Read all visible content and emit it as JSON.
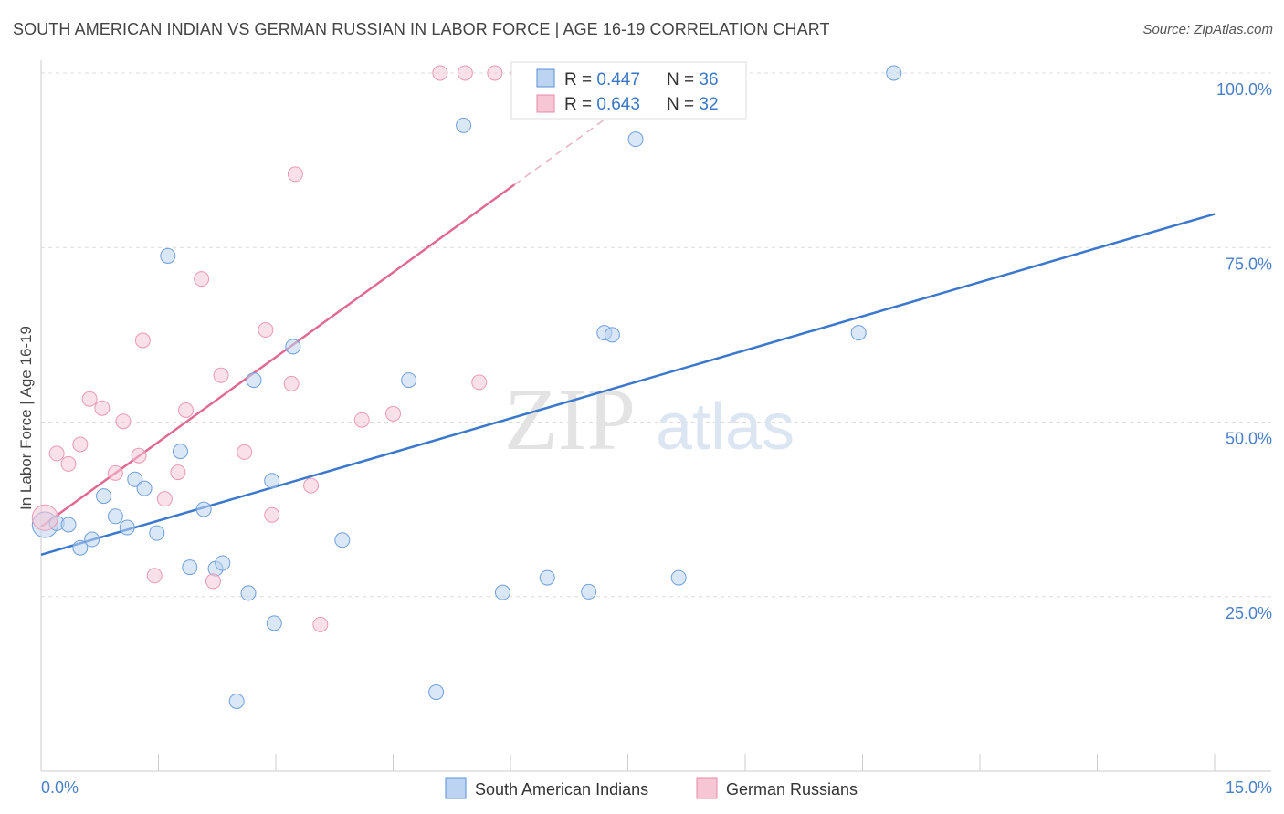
{
  "header": {
    "title": "SOUTH AMERICAN INDIAN VS GERMAN RUSSIAN IN LABOR FORCE | AGE 16-19 CORRELATION CHART",
    "source": "Source: ZipAtlas.com"
  },
  "watermark": {
    "zip": "ZIP",
    "atlas": "atlas"
  },
  "chart_data": {
    "type": "scatter",
    "title": "SOUTH AMERICAN INDIAN VS GERMAN RUSSIAN IN LABOR FORCE | AGE 16-19 CORRELATION CHART",
    "ylabel": "In Labor Force | Age 16-19",
    "xlabel": "",
    "xlim": [
      0,
      15
    ],
    "ylim": [
      0,
      102
    ],
    "x_tick_labels": [
      "0.0%",
      "15.0%"
    ],
    "y_ticks": [
      25,
      50,
      75,
      100
    ],
    "y_tick_labels": [
      "25.0%",
      "50.0%",
      "75.0%",
      "100.0%"
    ],
    "grid": true,
    "legend_position": "top-center",
    "colors": {
      "south_american_indians": "#3b78cc",
      "german_russians": "#e06a91",
      "blue_fill": "#bcd4f1",
      "pink_fill": "#f6c6d5"
    },
    "legend": [
      {
        "r_label": "R = ",
        "r_value": "0.447",
        "n_label": "N = ",
        "n_value": "36"
      },
      {
        "r_label": "R = ",
        "r_value": "0.643",
        "n_label": "N = ",
        "n_value": "32"
      }
    ],
    "series": [
      {
        "name": "South American Indians",
        "color": "#3b78cc",
        "points": [
          [
            0.05,
            35.3
          ],
          [
            0.2,
            35.5
          ],
          [
            0.35,
            35.3
          ],
          [
            0.5,
            32.0
          ],
          [
            0.65,
            33.2
          ],
          [
            0.8,
            39.4
          ],
          [
            0.95,
            36.5
          ],
          [
            1.1,
            34.9
          ],
          [
            1.2,
            41.8
          ],
          [
            1.32,
            40.5
          ],
          [
            1.48,
            34.1
          ],
          [
            1.62,
            73.8
          ],
          [
            1.78,
            45.8
          ],
          [
            1.9,
            29.2
          ],
          [
            2.08,
            37.5
          ],
          [
            2.23,
            29.0
          ],
          [
            2.32,
            29.8
          ],
          [
            2.5,
            10.0
          ],
          [
            2.65,
            25.5
          ],
          [
            2.72,
            56.0
          ],
          [
            2.95,
            41.6
          ],
          [
            2.98,
            21.2
          ],
          [
            3.22,
            60.8
          ],
          [
            3.85,
            33.1
          ],
          [
            4.7,
            56.0
          ],
          [
            5.05,
            11.3
          ],
          [
            5.4,
            92.5
          ],
          [
            5.9,
            25.6
          ],
          [
            6.47,
            27.7
          ],
          [
            7.0,
            25.7
          ],
          [
            7.2,
            62.8
          ],
          [
            7.3,
            62.5
          ],
          [
            7.6,
            90.5
          ],
          [
            8.15,
            27.7
          ],
          [
            10.45,
            62.8
          ],
          [
            10.9,
            100.0
          ]
        ],
        "trend": {
          "x": [
            0,
            15
          ],
          "y": [
            31.0,
            79.8
          ]
        }
      },
      {
        "name": "German Russians",
        "color": "#e06a91",
        "points": [
          [
            0.05,
            36.3
          ],
          [
            0.2,
            45.5
          ],
          [
            0.35,
            44.0
          ],
          [
            0.5,
            46.8
          ],
          [
            0.62,
            53.3
          ],
          [
            0.78,
            52.0
          ],
          [
            0.95,
            42.7
          ],
          [
            1.05,
            50.1
          ],
          [
            1.25,
            45.2
          ],
          [
            1.3,
            61.7
          ],
          [
            1.45,
            28.0
          ],
          [
            1.58,
            39.0
          ],
          [
            1.75,
            42.8
          ],
          [
            1.85,
            51.7
          ],
          [
            2.05,
            70.5
          ],
          [
            2.2,
            27.2
          ],
          [
            2.3,
            56.7
          ],
          [
            2.6,
            45.7
          ],
          [
            2.87,
            63.2
          ],
          [
            2.95,
            36.7
          ],
          [
            3.2,
            55.5
          ],
          [
            3.25,
            85.5
          ],
          [
            3.45,
            40.9
          ],
          [
            3.57,
            21.0
          ],
          [
            4.1,
            50.3
          ],
          [
            4.5,
            51.2
          ],
          [
            5.1,
            100.0
          ],
          [
            5.42,
            100.0
          ],
          [
            5.6,
            55.7
          ],
          [
            5.8,
            100.0
          ],
          [
            6.1,
            100.0
          ],
          [
            6.25,
            100.0
          ]
        ],
        "trend": {
          "x": [
            0,
            6.05
          ],
          "y": [
            35.0,
            84.0
          ]
        },
        "trend_extension": {
          "x": [
            6.05,
            8.0
          ],
          "y": [
            84.0,
            99.8
          ]
        }
      }
    ]
  },
  "bottom_legend": [
    {
      "label": "South American Indians"
    },
    {
      "label": "German Russians"
    }
  ]
}
